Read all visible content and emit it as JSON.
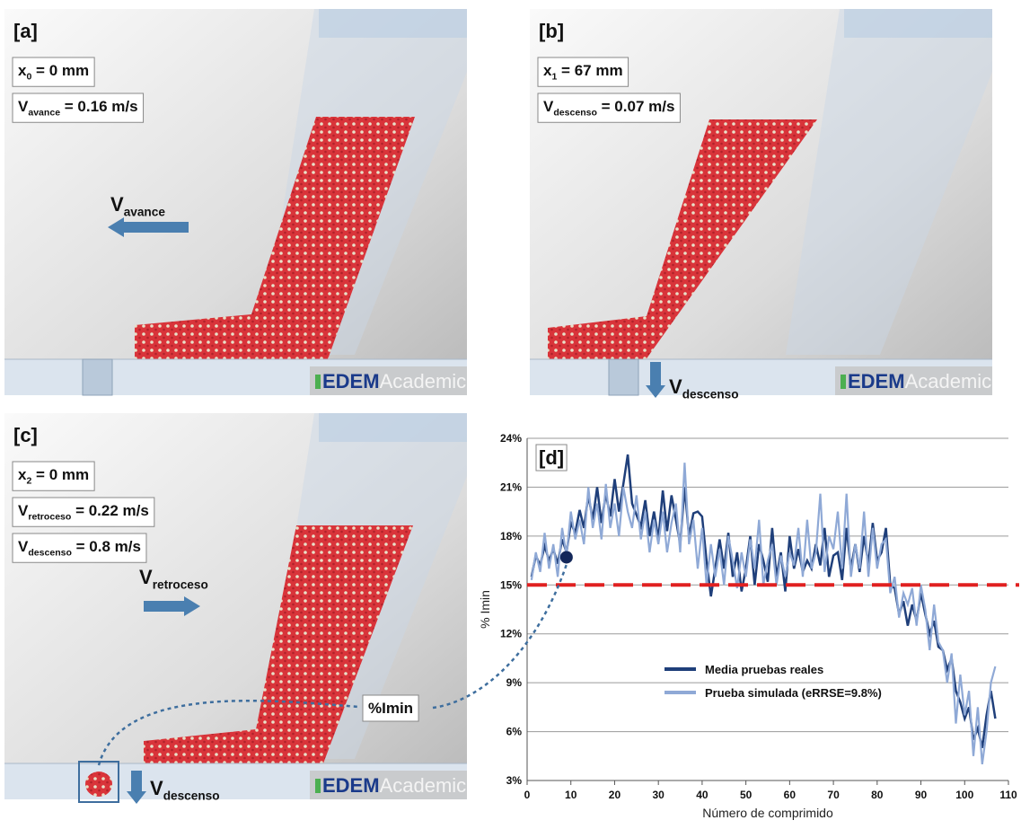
{
  "panels": [
    {
      "label": "[a]",
      "fields": [
        {
          "main": "x",
          "sub": "0",
          "rest": " = 0 mm"
        },
        {
          "main": "V",
          "sub": "avance",
          "rest": " = 0.16 m/s"
        }
      ],
      "arrows": [
        {
          "main": "V",
          "sub": "avance"
        }
      ],
      "logo": {
        "bold": "EDEM",
        "light": "Academic"
      }
    },
    {
      "label": "[b]",
      "fields": [
        {
          "main": "x",
          "sub": "1",
          "rest": " = 67 mm"
        },
        {
          "main": "V",
          "sub": "descenso",
          "rest": " = 0.07 m/s"
        }
      ],
      "arrows": [
        {
          "main": "V",
          "sub": "descenso"
        }
      ],
      "logo": {
        "bold": "EDEM",
        "light": "Academic"
      }
    },
    {
      "label": "[c]",
      "fields": [
        {
          "main": "x",
          "sub": "2",
          "rest": " = 0 mm"
        },
        {
          "main": "V",
          "sub": "retroceso",
          "rest": " = 0.22 m/s"
        },
        {
          "main": "V",
          "sub": "descenso",
          "rest": " = 0.8 m/s"
        }
      ],
      "arrows": [
        {
          "main": "V",
          "sub": "retroceso"
        },
        {
          "main": "V",
          "sub": "descenso"
        }
      ],
      "logo": {
        "bold": "EDEM",
        "light": "Academic"
      },
      "callout": "%Imin"
    }
  ],
  "chart_data": {
    "type": "line",
    "label": "[d]",
    "x_label": "Número de comprimido",
    "y_label": "% Imin",
    "xlim": [
      0,
      110
    ],
    "xticks": [
      0,
      10,
      20,
      30,
      40,
      50,
      60,
      70,
      80,
      90,
      100,
      110
    ],
    "ylim": [
      3,
      24
    ],
    "yticks": [
      {
        "value": 3,
        "label": "3%"
      },
      {
        "value": 6,
        "label": "6%"
      },
      {
        "value": 9,
        "label": "9%"
      },
      {
        "value": 12,
        "label": "12%"
      },
      {
        "value": 15,
        "label": "15%"
      },
      {
        "value": 18,
        "label": "18%"
      },
      {
        "value": 21,
        "label": "21%"
      },
      {
        "value": 24,
        "label": "24%"
      }
    ],
    "grid": true,
    "threshold": {
      "value": 15,
      "color": "#e02020"
    },
    "marker": {
      "x": 9,
      "y": 16.7,
      "color": "#14285a"
    },
    "x": [
      1,
      2,
      3,
      4,
      5,
      6,
      7,
      8,
      9,
      10,
      11,
      12,
      13,
      14,
      15,
      16,
      17,
      18,
      19,
      20,
      21,
      22,
      23,
      24,
      25,
      26,
      27,
      28,
      29,
      30,
      31,
      32,
      33,
      34,
      35,
      36,
      37,
      38,
      39,
      40,
      41,
      42,
      43,
      44,
      45,
      46,
      47,
      48,
      49,
      50,
      51,
      52,
      53,
      54,
      55,
      56,
      57,
      58,
      59,
      60,
      61,
      62,
      63,
      64,
      65,
      66,
      67,
      68,
      69,
      70,
      71,
      72,
      73,
      74,
      75,
      76,
      77,
      78,
      79,
      80,
      81,
      82,
      83,
      84,
      85,
      86,
      87,
      88,
      89,
      90,
      91,
      92,
      93,
      94,
      95,
      96,
      97,
      98,
      99,
      100,
      101,
      102,
      103,
      104,
      105,
      106,
      107
    ],
    "series": [
      {
        "name": "Media pruebas reales",
        "color": "#1f3f7a",
        "values": [
          15.5,
          16.8,
          16.2,
          17.4,
          16.5,
          17.2,
          16.3,
          17.8,
          17.0,
          18.8,
          18.2,
          19.6,
          18.5,
          20.5,
          19.0,
          21.0,
          18.8,
          20.6,
          19.2,
          21.5,
          19.5,
          21.2,
          23.0,
          20.0,
          19.3,
          18.6,
          20.2,
          18.0,
          19.5,
          17.8,
          20.8,
          18.3,
          20.5,
          19.0,
          17.5,
          21.0,
          18.0,
          19.4,
          19.5,
          19.2,
          16.5,
          14.3,
          16.0,
          17.8,
          16.0,
          18.2,
          15.5,
          17.0,
          14.6,
          16.0,
          18.0,
          15.0,
          17.5,
          16.5,
          15.2,
          18.5,
          15.5,
          17.0,
          14.6,
          18.0,
          16.0,
          17.2,
          15.8,
          16.5,
          16.0,
          17.5,
          16.2,
          18.5,
          15.5,
          16.8,
          17.0,
          15.3,
          18.5,
          16.0,
          17.5,
          15.8,
          18.0,
          16.3,
          18.8,
          16.5,
          17.0,
          18.5,
          15.0,
          14.8,
          13.2,
          14.0,
          12.5,
          13.8,
          12.8,
          14.5,
          13.2,
          12.0,
          12.8,
          11.2,
          11.0,
          9.8,
          10.5,
          8.5,
          7.8,
          6.8,
          7.5,
          5.5,
          6.2,
          5.0,
          7.0,
          8.5,
          6.8
        ]
      },
      {
        "name": "Prueba simulada (eRRSE=9.8%)",
        "color": "#8fa9d6",
        "values": [
          15.3,
          17.0,
          15.8,
          18.2,
          16.0,
          17.5,
          15.5,
          18.5,
          16.8,
          19.5,
          17.8,
          19.0,
          17.5,
          21.0,
          18.5,
          20.0,
          17.8,
          21.2,
          18.5,
          20.0,
          18.0,
          21.0,
          19.5,
          18.5,
          20.5,
          17.8,
          19.5,
          17.0,
          19.0,
          17.5,
          19.5,
          17.0,
          18.8,
          20.0,
          17.0,
          22.5,
          17.5,
          19.0,
          16.0,
          18.5,
          15.0,
          17.5,
          15.5,
          17.2,
          15.0,
          18.0,
          16.5,
          14.8,
          17.0,
          15.5,
          17.8,
          16.0,
          19.0,
          15.0,
          16.5,
          17.5,
          15.0,
          16.8,
          15.5,
          17.0,
          16.2,
          18.5,
          15.5,
          19.0,
          16.0,
          17.0,
          20.6,
          15.8,
          18.0,
          17.2,
          19.5,
          16.0,
          20.6,
          15.5,
          17.5,
          16.0,
          19.5,
          15.5,
          18.5,
          16.0,
          17.5,
          17.8,
          14.5,
          15.5,
          13.0,
          14.5,
          13.8,
          14.8,
          12.5,
          15.0,
          13.5,
          11.0,
          13.8,
          11.5,
          11.0,
          9.0,
          10.8,
          6.5,
          9.5,
          7.0,
          8.5,
          4.5,
          7.5,
          4.0,
          6.0,
          9.0,
          10.0
        ]
      }
    ]
  }
}
